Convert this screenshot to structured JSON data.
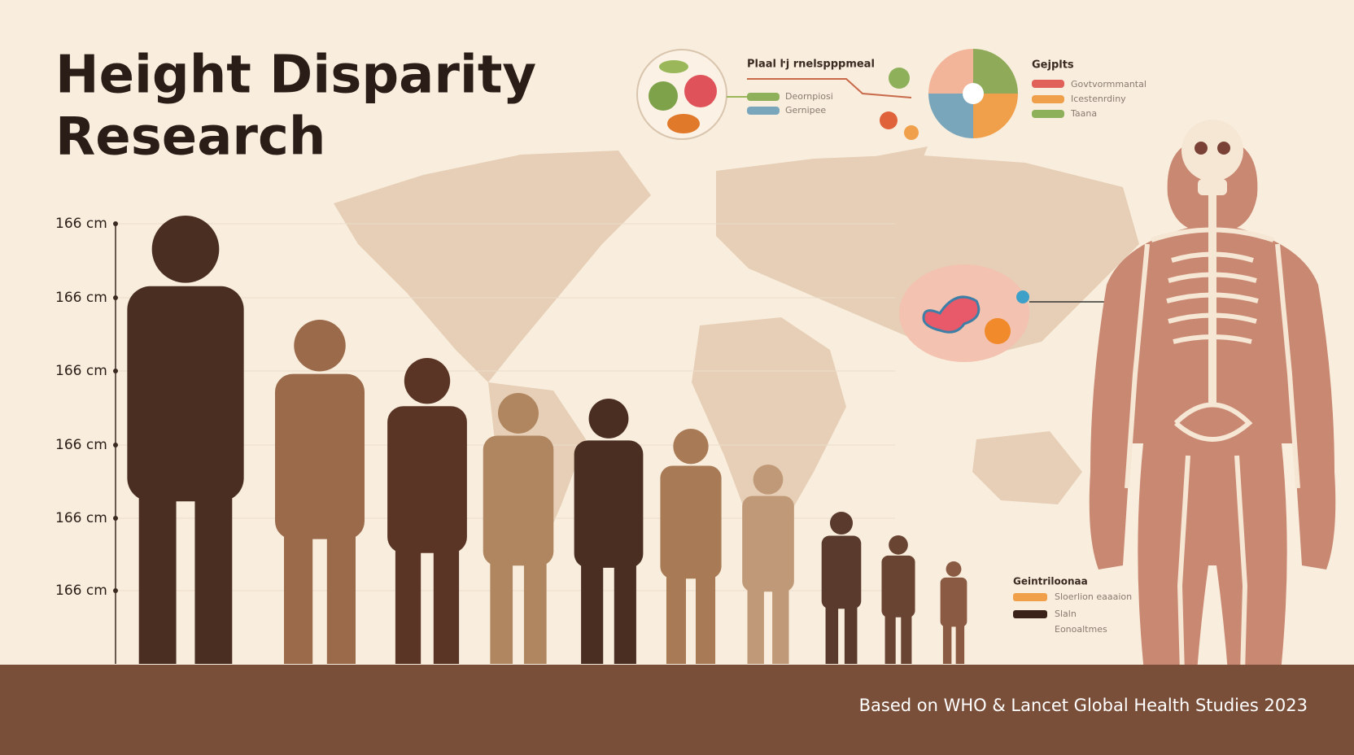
{
  "header": {
    "title_line_1": "Height Disparity",
    "title_line_2": "Research"
  },
  "height_scale": {
    "labels": [
      "166 cm",
      "166 cm",
      "166 cm",
      "166 cm",
      "166 cm",
      "166 cm"
    ]
  },
  "nutrition_panel": {
    "title": "Plaal ŀj rnelspppmeal",
    "legend": [
      "Deornpiosi",
      "Gernipee"
    ]
  },
  "factors_panel": {
    "title": "Gejplts",
    "legend": [
      "Govtvormmantal",
      "Icestenrdiny",
      "Taana"
    ]
  },
  "figure_legend": {
    "title": "Geintriloonaa",
    "items": [
      "Sloerlion eaaaion",
      "Slaln",
      "Eonoaltmes"
    ]
  },
  "footer": {
    "source": "Based on WHO & Lancet Global Health Studies 2023"
  }
}
